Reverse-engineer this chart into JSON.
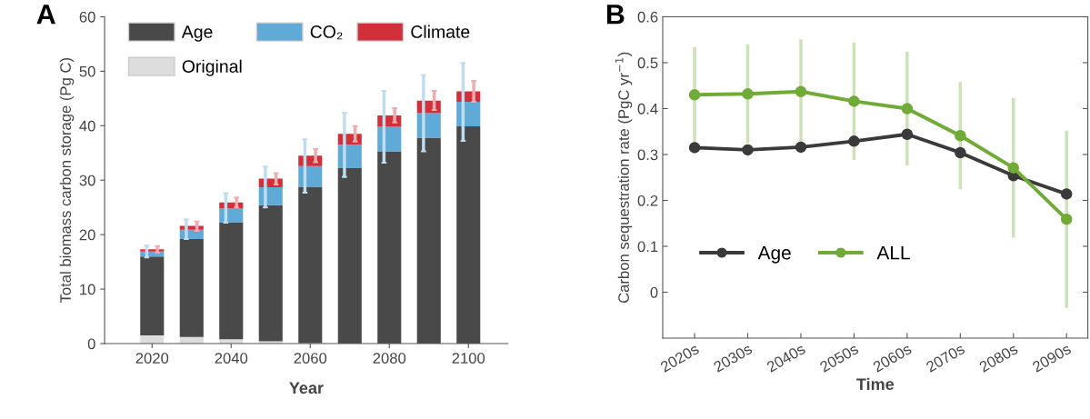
{
  "chart_data": [
    {
      "type": "bar",
      "title": "A",
      "xlabel": "Year",
      "ylabel": "Total biomass carbon storage (Pg C)",
      "stacked": true,
      "x": [
        2020,
        2030,
        2040,
        2050,
        2060,
        2070,
        2080,
        2090,
        2100
      ],
      "xlim": [
        2008,
        2110
      ],
      "xticks": [
        2020,
        2040,
        2060,
        2080,
        2100
      ],
      "ylim": [
        0,
        60
      ],
      "yticks": [
        0,
        10,
        20,
        30,
        40,
        50,
        60
      ],
      "legend": "top left",
      "grid": false,
      "series": [
        {
          "name": "Original",
          "color": "#dcdddc",
          "values": [
            1.5,
            1.2,
            0.8,
            0.4,
            0.1,
            0,
            0,
            0,
            0
          ]
        },
        {
          "name": "Age",
          "color": "#4a4949",
          "values": [
            14.5,
            18.0,
            21.5,
            25.0,
            28.7,
            32.2,
            35.3,
            37.8,
            39.9
          ]
        },
        {
          "name": "CO₂",
          "color": "#5faad6",
          "values": [
            0.9,
            1.7,
            2.5,
            3.3,
            3.8,
            4.3,
            4.5,
            4.5,
            4.5
          ],
          "errors": [
            [
              15.8,
              18.0
            ],
            [
              19.2,
              22.8
            ],
            [
              22.2,
              27.6
            ],
            [
              25.0,
              32.5
            ],
            [
              27.7,
              37.5
            ],
            [
              30.6,
              42.4
            ],
            [
              33.2,
              46.4
            ],
            [
              35.3,
              49.3
            ],
            [
              37.2,
              51.5
            ]
          ]
        },
        {
          "name": "Climate",
          "color": "#d1303a",
          "values": [
            0.4,
            0.7,
            1.1,
            1.6,
            1.9,
            2.0,
            2.1,
            2.3,
            1.9
          ],
          "errors": [
            [
              16.7,
              17.9
            ],
            [
              20.7,
              22.4
            ],
            [
              25.0,
              26.8
            ],
            [
              29.2,
              31.3
            ],
            [
              33.3,
              35.7
            ],
            [
              37.1,
              39.9
            ],
            [
              40.6,
              43.2
            ],
            [
              42.9,
              46.4
            ],
            [
              44.4,
              48.2
            ]
          ]
        }
      ]
    },
    {
      "type": "line",
      "title": "B",
      "xlabel": "Time",
      "ylabel": "Carbon sequestration rate (PgC yr$^{−1}$)",
      "categories": [
        "2020s",
        "2030s",
        "2040s",
        "2050s",
        "2060s",
        "2070s",
        "2080s",
        "2090s"
      ],
      "ylim": [
        -0.1,
        0.6
      ],
      "yticks": [
        0,
        0.1,
        0.2,
        0.3,
        0.4,
        0.5,
        0.6
      ],
      "legend": "bottom left",
      "marker": "circle",
      "line_style": "solid",
      "grid": false,
      "series": [
        {
          "name": "Age",
          "color": "#3a3a3a",
          "values": [
            0.315,
            0.31,
            0.316,
            0.329,
            0.344,
            0.304,
            0.254,
            0.214
          ]
        },
        {
          "name": "ALL",
          "color": "#6fab36",
          "values": [
            0.43,
            0.432,
            0.437,
            0.416,
            0.4,
            0.341,
            0.271,
            0.159
          ],
          "errors": [
            0.104,
            0.108,
            0.114,
            0.128,
            0.124,
            0.117,
            0.152,
            0.193
          ]
        }
      ]
    }
  ]
}
